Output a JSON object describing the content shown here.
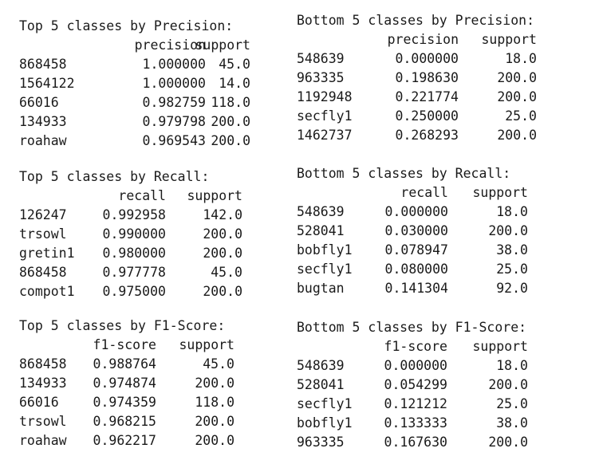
{
  "blocks": [
    {
      "id": "top_precision",
      "title": "Top 5 classes by Precision:",
      "headers": [
        "precision",
        "support"
      ],
      "rows": [
        [
          "868458",
          "1.000000",
          "45.0"
        ],
        [
          "1564122",
          "1.000000",
          "14.0"
        ],
        [
          "66016",
          "0.982759",
          "118.0"
        ],
        [
          "134933",
          "0.979798",
          "200.0"
        ],
        [
          "roahaw",
          "0.969543",
          "200.0"
        ]
      ]
    },
    {
      "id": "bottom_precision",
      "title": "Bottom 5 classes by Precision:",
      "headers": [
        "precision",
        "support"
      ],
      "rows": [
        [
          "548639",
          "0.000000",
          "18.0"
        ],
        [
          "963335",
          "0.198630",
          "200.0"
        ],
        [
          "1192948",
          "0.221774",
          "200.0"
        ],
        [
          "secfly1",
          "0.250000",
          "25.0"
        ],
        [
          "1462737",
          "0.268293",
          "200.0"
        ]
      ]
    },
    {
      "id": "top_recall",
      "title": "Top 5 classes by Recall:",
      "headers": [
        "recall",
        "support"
      ],
      "rows": [
        [
          "126247",
          "0.992958",
          "142.0"
        ],
        [
          "trsowl",
          "0.990000",
          "200.0"
        ],
        [
          "gretin1",
          "0.980000",
          "200.0"
        ],
        [
          "868458",
          "0.977778",
          "45.0"
        ],
        [
          "compot1",
          "0.975000",
          "200.0"
        ]
      ]
    },
    {
      "id": "bottom_recall",
      "title": "Bottom 5 classes by Recall:",
      "headers": [
        "recall",
        "support"
      ],
      "rows": [
        [
          "548639",
          "0.000000",
          "18.0"
        ],
        [
          "528041",
          "0.030000",
          "200.0"
        ],
        [
          "bobfly1",
          "0.078947",
          "38.0"
        ],
        [
          "secfly1",
          "0.080000",
          "25.0"
        ],
        [
          "bugtan",
          "0.141304",
          "92.0"
        ]
      ]
    },
    {
      "id": "top_f1",
      "title": "Top 5 classes by F1-Score:",
      "headers": [
        "f1-score",
        "support"
      ],
      "rows": [
        [
          "868458",
          "0.988764",
          "45.0"
        ],
        [
          "134933",
          "0.974874",
          "200.0"
        ],
        [
          "66016",
          "0.974359",
          "118.0"
        ],
        [
          "trsowl",
          "0.968215",
          "200.0"
        ],
        [
          "roahaw",
          "0.962217",
          "200.0"
        ]
      ]
    },
    {
      "id": "bottom_f1",
      "title": "Bottom 5 classes by F1-Score:",
      "headers": [
        "f1-score",
        "support"
      ],
      "rows": [
        [
          "548639",
          "0.000000",
          "18.0"
        ],
        [
          "528041",
          "0.054299",
          "200.0"
        ],
        [
          "secfly1",
          "0.121212",
          "25.0"
        ],
        [
          "bobfly1",
          "0.133333",
          "38.0"
        ],
        [
          "963335",
          "0.167630",
          "200.0"
        ]
      ]
    }
  ]
}
